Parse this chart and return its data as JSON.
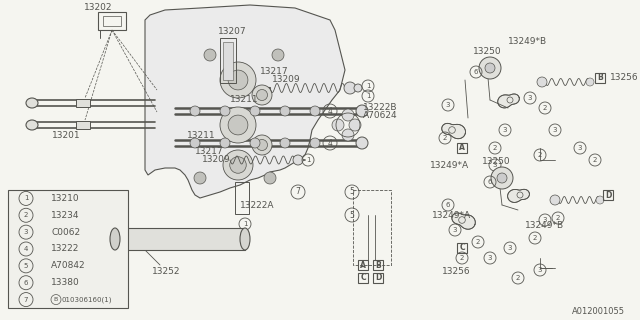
{
  "bg_color": "#f5f5f0",
  "dc": "#555550",
  "part_number": "A012001055",
  "legend": [
    {
      "num": "1",
      "code": "13210"
    },
    {
      "num": "2",
      "code": "13234"
    },
    {
      "num": "3",
      "code": "C0062"
    },
    {
      "num": "4",
      "code": "13222"
    },
    {
      "num": "5",
      "code": "A70842"
    },
    {
      "num": "6",
      "code": "13380"
    },
    {
      "num": "7",
      "code": "B010306160(1)"
    }
  ],
  "fig_w": 6.4,
  "fig_h": 3.2,
  "dpi": 100
}
